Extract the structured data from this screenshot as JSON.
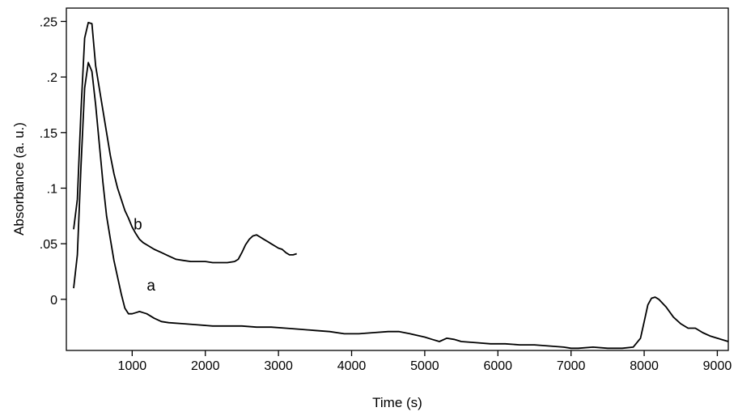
{
  "chart_data": {
    "type": "line",
    "xlabel": "Time (s)",
    "ylabel": "Absorbance (a. u.)",
    "xlim": [
      100,
      9150
    ],
    "ylim": [
      -0.046,
      0.262
    ],
    "x_ticks": [
      {
        "value": 1000,
        "label": "1000"
      },
      {
        "value": 2000,
        "label": "2000"
      },
      {
        "value": 3000,
        "label": "3000"
      },
      {
        "value": 4000,
        "label": "4000"
      },
      {
        "value": 5000,
        "label": "5000"
      },
      {
        "value": 6000,
        "label": "6000"
      },
      {
        "value": 7000,
        "label": "7000"
      },
      {
        "value": 8000,
        "label": "8000"
      },
      {
        "value": 9000,
        "label": "9000"
      }
    ],
    "y_ticks": [
      {
        "value": 0,
        "label": "0"
      },
      {
        "value": 0.05,
        "label": ".05"
      },
      {
        "value": 0.1,
        "label": ".1"
      },
      {
        "value": 0.15,
        "label": ".15"
      },
      {
        "value": 0.2,
        "label": ".2"
      },
      {
        "value": 0.25,
        "label": ".25"
      }
    ],
    "grid": false,
    "series": [
      {
        "name": "a",
        "color": "#000000",
        "x": [
          200,
          250,
          300,
          350,
          400,
          450,
          500,
          550,
          600,
          650,
          700,
          750,
          800,
          850,
          900,
          950,
          1000,
          1050,
          1100,
          1150,
          1200,
          1300,
          1400,
          1500,
          1700,
          1900,
          2100,
          2300,
          2500,
          2700,
          2900,
          3100,
          3300,
          3500,
          3700,
          3900,
          4100,
          4300,
          4500,
          4650,
          4800,
          5000,
          5100,
          5200,
          5300,
          5400,
          5500,
          5700,
          5900,
          6100,
          6300,
          6500,
          6700,
          6900,
          7000,
          7100,
          7300,
          7500,
          7700,
          7850,
          7950,
          8000,
          8050,
          8100,
          8150,
          8200,
          8300,
          8400,
          8500,
          8600,
          8700,
          8800,
          8900,
          9000,
          9100,
          9150
        ],
        "y": [
          0.01,
          0.04,
          0.12,
          0.19,
          0.213,
          0.205,
          0.175,
          0.14,
          0.105,
          0.075,
          0.055,
          0.035,
          0.02,
          0.005,
          -0.008,
          -0.013,
          -0.013,
          -0.012,
          -0.011,
          -0.012,
          -0.013,
          -0.017,
          -0.02,
          -0.021,
          -0.022,
          -0.023,
          -0.024,
          -0.024,
          -0.024,
          -0.025,
          -0.025,
          -0.026,
          -0.027,
          -0.028,
          -0.029,
          -0.031,
          -0.031,
          -0.03,
          -0.029,
          -0.029,
          -0.031,
          -0.034,
          -0.036,
          -0.038,
          -0.035,
          -0.036,
          -0.038,
          -0.039,
          -0.04,
          -0.04,
          -0.041,
          -0.041,
          -0.042,
          -0.043,
          -0.044,
          -0.044,
          -0.043,
          -0.044,
          -0.044,
          -0.043,
          -0.035,
          -0.02,
          -0.005,
          0.001,
          0.002,
          0.0,
          -0.007,
          -0.016,
          -0.022,
          -0.026,
          -0.026,
          -0.03,
          -0.033,
          -0.035,
          -0.037,
          -0.038
        ]
      },
      {
        "name": "b",
        "color": "#000000",
        "x": [
          200,
          250,
          300,
          350,
          400,
          450,
          500,
          550,
          600,
          650,
          700,
          750,
          800,
          850,
          900,
          950,
          1000,
          1050,
          1100,
          1150,
          1200,
          1300,
          1400,
          1500,
          1600,
          1700,
          1800,
          1900,
          2000,
          2100,
          2200,
          2300,
          2400,
          2450,
          2500,
          2550,
          2600,
          2650,
          2700,
          2750,
          2800,
          2850,
          2900,
          2950,
          3000,
          3050,
          3100,
          3150,
          3200,
          3250
        ],
        "y": [
          0.063,
          0.09,
          0.17,
          0.235,
          0.249,
          0.248,
          0.21,
          0.19,
          0.17,
          0.15,
          0.13,
          0.113,
          0.1,
          0.09,
          0.08,
          0.073,
          0.065,
          0.059,
          0.054,
          0.051,
          0.049,
          0.045,
          0.042,
          0.039,
          0.036,
          0.035,
          0.034,
          0.034,
          0.034,
          0.033,
          0.033,
          0.033,
          0.034,
          0.036,
          0.042,
          0.049,
          0.054,
          0.057,
          0.058,
          0.056,
          0.054,
          0.052,
          0.05,
          0.048,
          0.046,
          0.045,
          0.042,
          0.04,
          0.04,
          0.041
        ]
      }
    ],
    "annotations": [
      {
        "text": "a",
        "x": 1200,
        "y": 0.008
      },
      {
        "text": "b",
        "x": 1020,
        "y": 0.063
      }
    ]
  }
}
